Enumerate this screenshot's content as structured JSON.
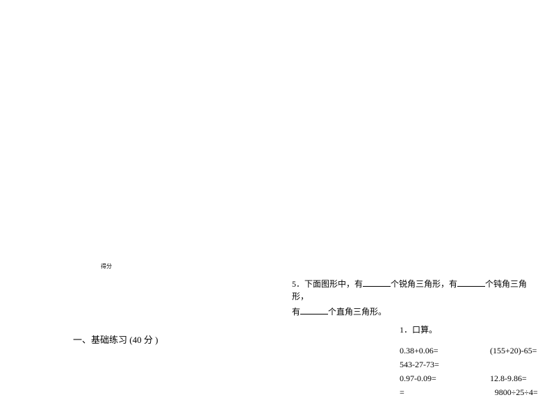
{
  "score_label": "得分",
  "section": {
    "number": "一、",
    "title": "基础练习",
    "points": " (40 分 )"
  },
  "question5": {
    "prefix": "5．下面图形中，有",
    "mid1": "个锐角三角形，有",
    "mid2": "个钝角三角形，",
    "line2_prefix": "有",
    "line2_suffix": "个直角三角形。"
  },
  "calc": {
    "title": "1．口算。",
    "row1_a": "0.38+0.06=",
    "row1_b": "(155+20)-65=",
    "row2_a": "543-27-73=",
    "row3_a": "0.97-0.09=",
    "row3_b": "12.8-9.86=",
    "row4_a": "=",
    "row4_b": "9800÷25÷4="
  },
  "colors": {
    "background": "#ffffff",
    "text": "#000000"
  },
  "fonts": {
    "body_size_pt": 12,
    "small_size_pt": 8
  }
}
